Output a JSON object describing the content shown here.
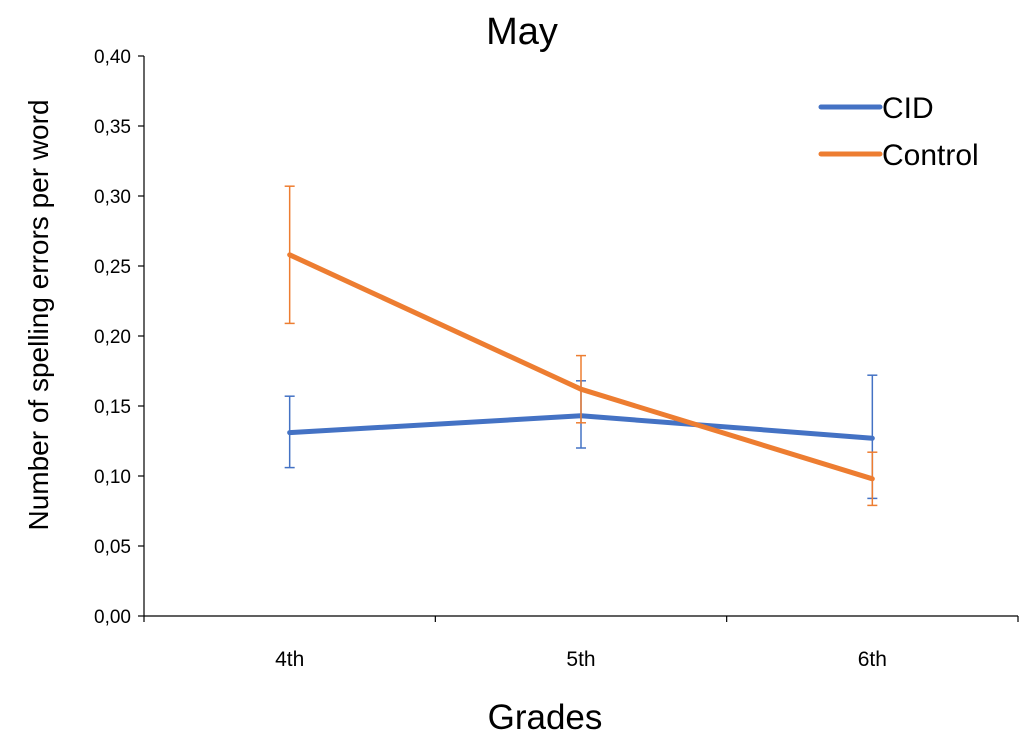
{
  "chart_data": {
    "type": "line",
    "title": "May",
    "xlabel": "Grades",
    "ylabel": "Number of spelling errors per word",
    "categories": [
      "4th",
      "5th",
      "6th"
    ],
    "ylim": [
      0,
      0.4
    ],
    "yticks": [
      0.0,
      0.05,
      0.1,
      0.15,
      0.2,
      0.25,
      0.3,
      0.35,
      0.4
    ],
    "ytick_labels": [
      "0,00",
      "0,05",
      "0,10",
      "0,15",
      "0,20",
      "0,25",
      "0,30",
      "0,35",
      "0,40"
    ],
    "grid": false,
    "legend_position": "top-right",
    "series": [
      {
        "name": "CID",
        "color": "#4472C4",
        "values": [
          0.131,
          0.143,
          0.127
        ],
        "error_low": [
          0.106,
          0.12,
          0.084
        ],
        "error_high": [
          0.157,
          0.168,
          0.172
        ]
      },
      {
        "name": "Control",
        "color": "#ED7D31",
        "values": [
          0.258,
          0.162,
          0.098
        ],
        "error_low": [
          0.209,
          0.138,
          0.079
        ],
        "error_high": [
          0.307,
          0.186,
          0.117
        ]
      }
    ]
  }
}
